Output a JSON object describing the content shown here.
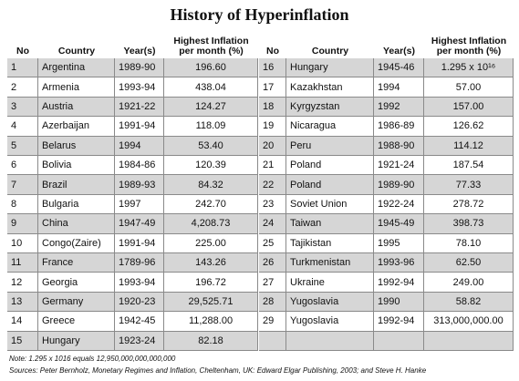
{
  "header": {
    "title": "History of Hyperinflation"
  },
  "table": {
    "columns": [
      "No",
      "Country",
      "Year(s)",
      "Highest Inflation per month (%)"
    ],
    "rows": [
      [
        "1",
        "Argentina",
        "1989-90",
        "196.60"
      ],
      [
        "2",
        "Armenia",
        "1993-94",
        "438.04"
      ],
      [
        "3",
        "Austria",
        "1921-22",
        "124.27"
      ],
      [
        "4",
        "Azerbaijan",
        "1991-94",
        "118.09"
      ],
      [
        "5",
        "Belarus",
        "1994",
        "53.40"
      ],
      [
        "6",
        "Bolivia",
        "1984-86",
        "120.39"
      ],
      [
        "7",
        "Brazil",
        "1989-93",
        "84.32"
      ],
      [
        "8",
        "Bulgaria",
        "1997",
        "242.70"
      ],
      [
        "9",
        "China",
        "1947-49",
        "4,208.73"
      ],
      [
        "10",
        "Congo(Zaire)",
        "1991-94",
        "225.00"
      ],
      [
        "11",
        "France",
        "1789-96",
        "143.26"
      ],
      [
        "12",
        "Georgia",
        "1993-94",
        "196.72"
      ],
      [
        "13",
        "Germany",
        "1920-23",
        "29,525.71"
      ],
      [
        "14",
        "Greece",
        "1942-45",
        "11,288.00"
      ],
      [
        "15",
        "Hungary",
        "1923-24",
        "82.18"
      ],
      [
        "16",
        "Hungary",
        "1945-46",
        "1.295 x 10¹⁶"
      ],
      [
        "17",
        "Kazakhstan",
        "1994",
        "57.00"
      ],
      [
        "18",
        "Kyrgyzstan",
        "1992",
        "157.00"
      ],
      [
        "19",
        "Nicaragua",
        "1986-89",
        "126.62"
      ],
      [
        "20",
        "Peru",
        "1988-90",
        "114.12"
      ],
      [
        "21",
        "Poland",
        "1921-24",
        "187.54"
      ],
      [
        "22",
        "Poland",
        "1989-90",
        "77.33"
      ],
      [
        "23",
        "Soviet Union",
        "1922-24",
        "278.72"
      ],
      [
        "24",
        "Taiwan",
        "1945-49",
        "398.73"
      ],
      [
        "25",
        "Tajikistan",
        "1995",
        "78.10"
      ],
      [
        "26",
        "Turkmenistan",
        "1993-96",
        "62.50"
      ],
      [
        "27",
        "Ukraine",
        "1992-94",
        "249.00"
      ],
      [
        "28",
        "Yugoslavia",
        "1990",
        "58.82"
      ],
      [
        "29",
        "Yugoslavia",
        "1992-94",
        "313,000,000.00"
      ]
    ]
  },
  "notes": [
    "Note: 1.295 x 1016 equals 12,950,000,000,000,000",
    "Sources: Peter Bernholz, Monetary Regimes and Inflation, Cheltenham, UK: Edward Elgar Publishing, 2003; and Steve H. Hanke"
  ]
}
